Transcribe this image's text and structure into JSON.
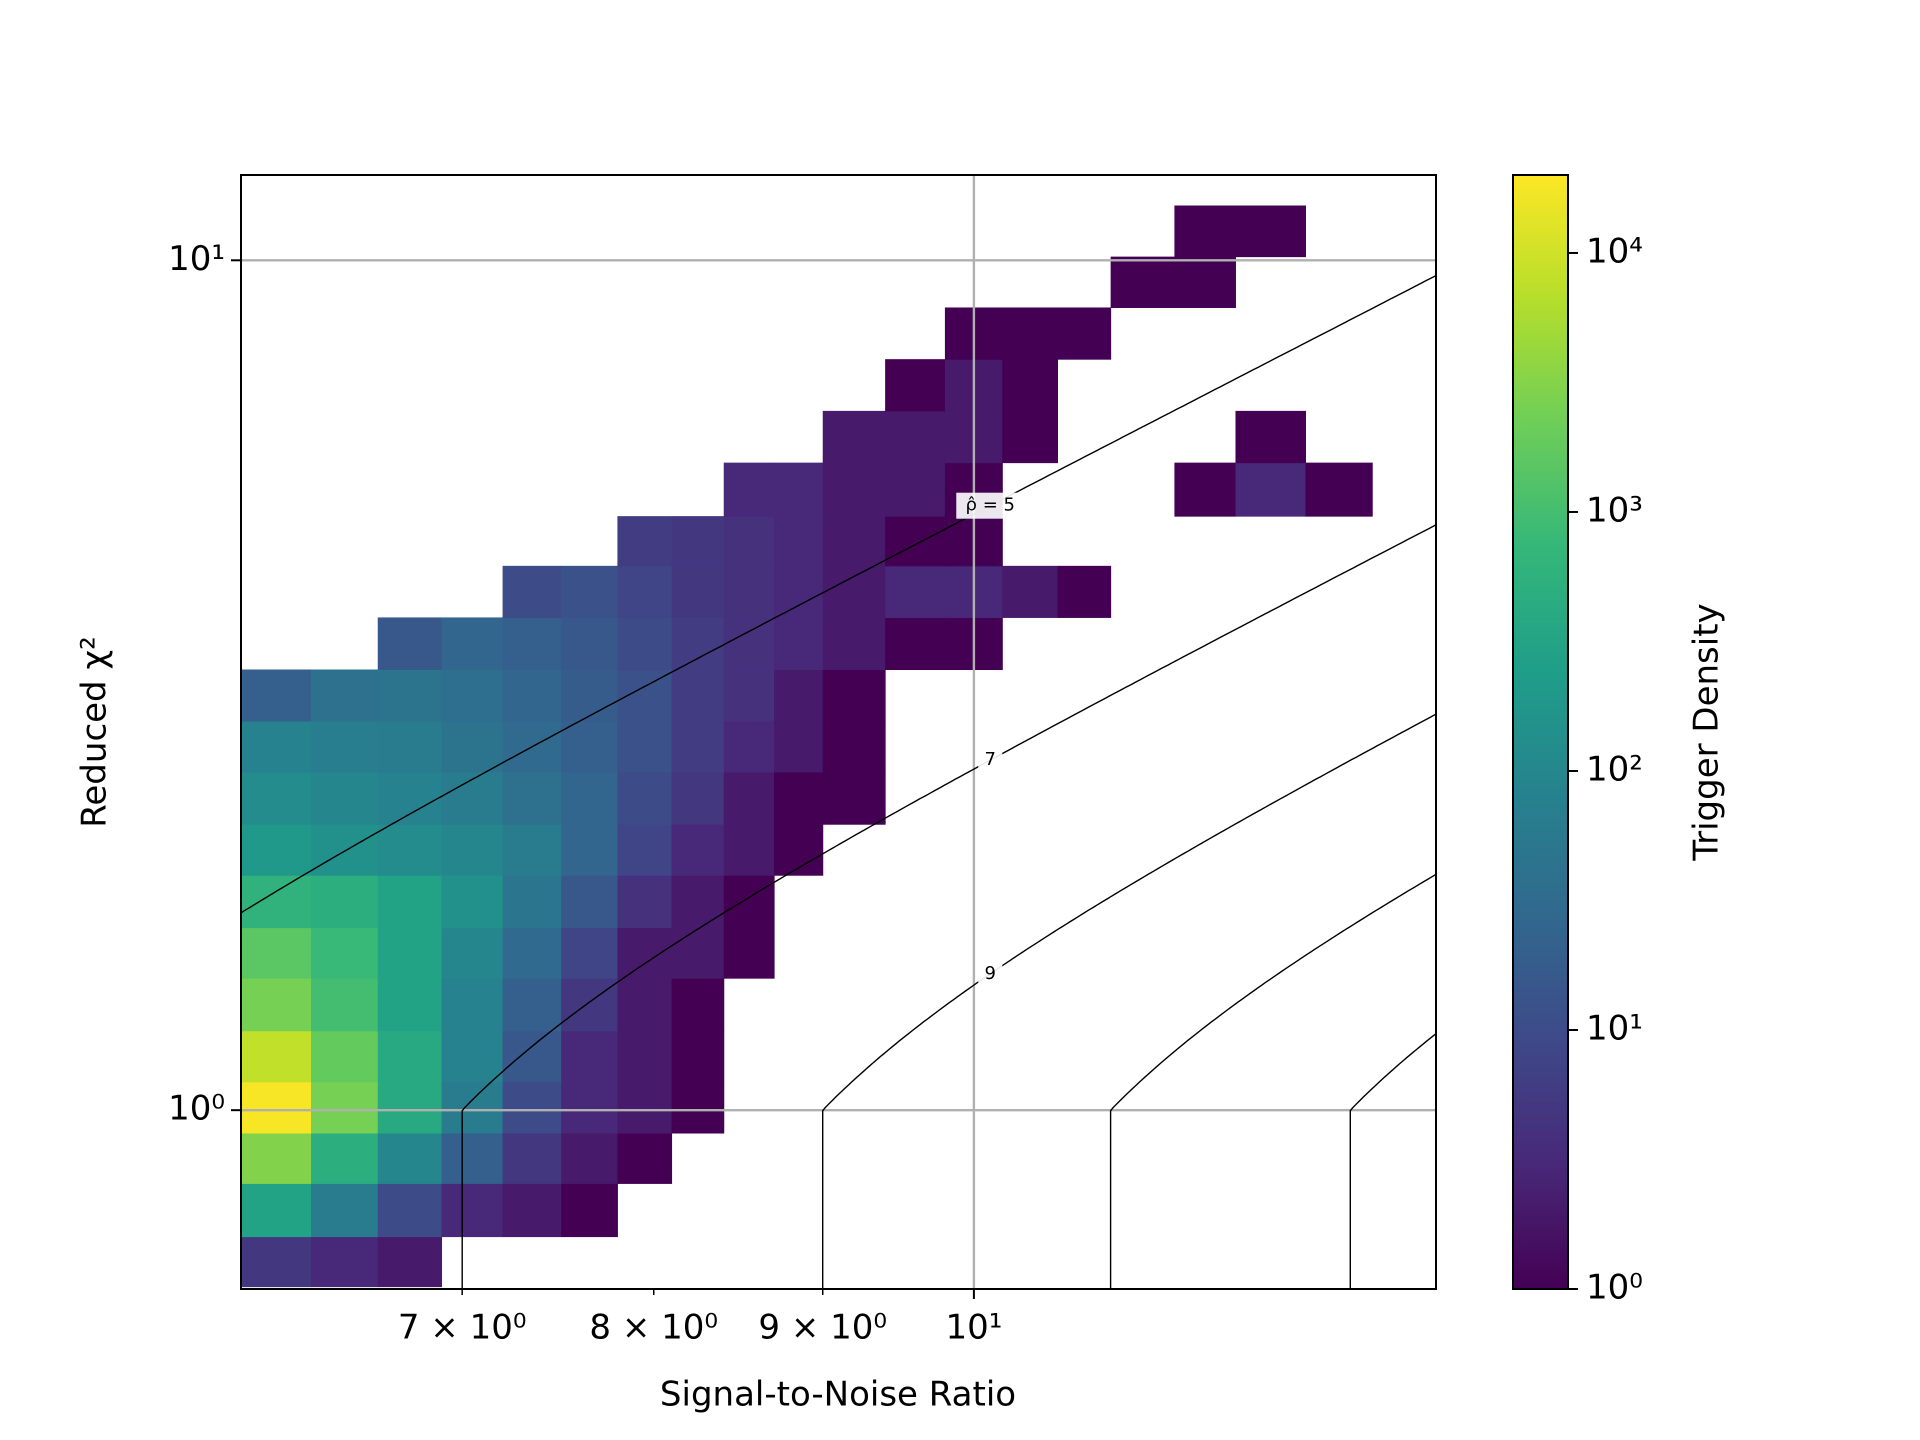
{
  "chart_data": {
    "type": "hexbin",
    "xlabel": "Signal-to-Noise Ratio",
    "ylabel": "Reduced χ²",
    "colorbar_label": "Trigger Density",
    "log_x": true,
    "log_y": true,
    "log_color": true,
    "grid": true,
    "colormap": "viridis",
    "xlim": [
      6.0,
      13.8
    ],
    "ylim": [
      0.616,
      12.6
    ],
    "clim": [
      1,
      20000
    ],
    "xticks": [
      {
        "value": 10,
        "label": "10¹"
      }
    ],
    "xticks_minor": [
      {
        "value": 7,
        "label": "7 × 10⁰"
      },
      {
        "value": 8,
        "label": "8 × 10⁰"
      },
      {
        "value": 9,
        "label": "9 × 10⁰"
      }
    ],
    "yticks": [
      {
        "value": 1,
        "label": "10⁰"
      },
      {
        "value": 10,
        "label": "10¹"
      }
    ],
    "cticks": [
      {
        "value": 1,
        "label": "10⁰"
      },
      {
        "value": 10,
        "label": "10¹"
      },
      {
        "value": 100,
        "label": "10²"
      },
      {
        "value": 1000,
        "label": "10³"
      },
      {
        "value": 10000,
        "label": "10⁴"
      }
    ],
    "contours": [
      {
        "level": 5,
        "label": "ρ̂ = 5"
      },
      {
        "level": 7
      },
      {
        "level": 9
      },
      {
        "level": 11
      },
      {
        "level": 13
      }
    ],
    "contour_labelled": [
      0,
      1,
      2
    ],
    "density": {
      "x_edges": [
        6.0,
        6.3,
        6.6,
        6.9,
        7.2,
        7.5,
        7.8,
        8.1,
        8.4,
        8.7,
        9.0,
        9.4,
        9.8,
        10.2,
        10.6,
        11.0,
        11.5,
        12.0,
        12.6,
        13.2
      ],
      "y_edges": [
        0.62,
        0.71,
        0.82,
        0.94,
        1.08,
        1.24,
        1.43,
        1.64,
        1.89,
        2.17,
        2.5,
        2.87,
        3.3,
        3.8,
        4.37,
        5.0,
        5.78,
        6.65,
        7.65,
        8.8,
        10.1,
        11.6
      ],
      "counts": [
        [
          5,
          3,
          2,
          null,
          null,
          null,
          null,
          null,
          null,
          null,
          null,
          null,
          null,
          null,
          null,
          null,
          null,
          null,
          null
        ],
        [
          300,
          60,
          10,
          3,
          2,
          1,
          null,
          null,
          null,
          null,
          null,
          null,
          null,
          null,
          null,
          null,
          null,
          null,
          null
        ],
        [
          3000,
          500,
          100,
          20,
          5,
          2,
          1,
          null,
          null,
          null,
          null,
          null,
          null,
          null,
          null,
          null,
          null,
          null,
          null
        ],
        [
          18000,
          2500,
          400,
          60,
          10,
          3,
          2,
          1,
          null,
          null,
          null,
          null,
          null,
          null,
          null,
          null,
          null,
          null,
          null
        ],
        [
          8000,
          1800,
          400,
          80,
          15,
          3,
          2,
          1,
          null,
          null,
          null,
          null,
          null,
          null,
          null,
          null,
          null,
          null,
          null
        ],
        [
          2500,
          1000,
          300,
          80,
          20,
          5,
          2,
          1,
          null,
          null,
          null,
          null,
          null,
          null,
          null,
          null,
          null,
          null,
          null
        ],
        [
          1500,
          800,
          300,
          100,
          30,
          8,
          2,
          2,
          1,
          null,
          null,
          null,
          null,
          null,
          null,
          null,
          null,
          null,
          null
        ],
        [
          600,
          500,
          300,
          150,
          50,
          15,
          4,
          2,
          1,
          null,
          null,
          null,
          null,
          null,
          null,
          null,
          null,
          null,
          null
        ],
        [
          200,
          150,
          120,
          100,
          60,
          25,
          8,
          3,
          2,
          1,
          null,
          null,
          null,
          null,
          null,
          null,
          null,
          null,
          null
        ],
        [
          120,
          100,
          80,
          60,
          40,
          25,
          10,
          5,
          2,
          1,
          1,
          null,
          null,
          null,
          null,
          null,
          null,
          null,
          null
        ],
        [
          80,
          70,
          60,
          45,
          30,
          20,
          12,
          6,
          3,
          2,
          1,
          null,
          null,
          null,
          null,
          null,
          null,
          null,
          null
        ],
        [
          20,
          40,
          45,
          35,
          25,
          18,
          12,
          6,
          4,
          2,
          1,
          null,
          null,
          null,
          null,
          null,
          null,
          null,
          null
        ],
        [
          null,
          null,
          15,
          25,
          20,
          15,
          10,
          6,
          4,
          3,
          2,
          1,
          1,
          null,
          null,
          null,
          null,
          null,
          null
        ],
        [
          null,
          null,
          null,
          null,
          10,
          12,
          8,
          5,
          4,
          3,
          2,
          3,
          3,
          2,
          1,
          null,
          null,
          null,
          null
        ],
        [
          null,
          null,
          null,
          null,
          null,
          null,
          6,
          5,
          4,
          3,
          2,
          1,
          1,
          null,
          null,
          null,
          null,
          null,
          null
        ],
        [
          null,
          null,
          null,
          null,
          null,
          null,
          null,
          null,
          3,
          3,
          2,
          2,
          1,
          null,
          null,
          null,
          1,
          3,
          1
        ],
        [
          null,
          null,
          null,
          null,
          null,
          null,
          null,
          null,
          null,
          null,
          2,
          2,
          2,
          1,
          null,
          null,
          null,
          1,
          null
        ],
        [
          null,
          null,
          null,
          null,
          null,
          null,
          null,
          null,
          null,
          null,
          null,
          1,
          2,
          1,
          null,
          null,
          null,
          null,
          null
        ],
        [
          null,
          null,
          null,
          null,
          null,
          null,
          null,
          null,
          null,
          null,
          null,
          null,
          1,
          1,
          1,
          null,
          null,
          null,
          null
        ],
        [
          null,
          null,
          null,
          null,
          null,
          null,
          null,
          null,
          null,
          null,
          null,
          null,
          null,
          null,
          null,
          1,
          1,
          null,
          null
        ],
        [
          null,
          null,
          null,
          null,
          null,
          null,
          null,
          null,
          null,
          null,
          null,
          null,
          null,
          null,
          null,
          null,
          1,
          1,
          null
        ]
      ]
    }
  }
}
